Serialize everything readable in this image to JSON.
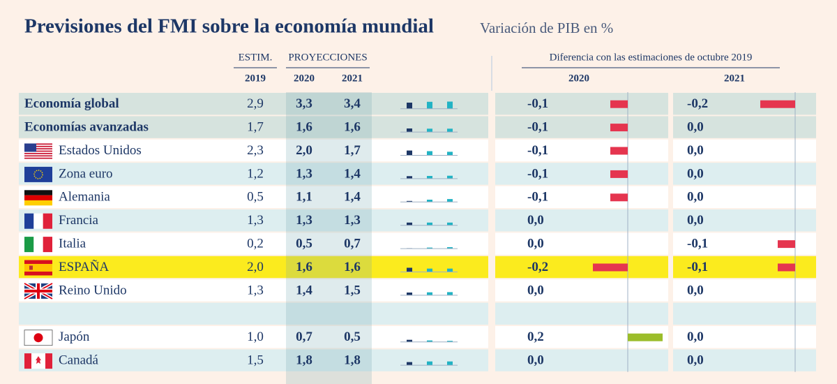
{
  "header": {
    "title": "Previsiones del FMI sobre la economía mundial",
    "subtitle": "Variación de PIB en %"
  },
  "columns": {
    "estim": "ESTIM.",
    "proj": "PROYECCIONES",
    "years": [
      "2019",
      "2020",
      "2021"
    ],
    "diff_title": "Diferencia con las estimaciones de octubre 2019",
    "diff_years": [
      "2020",
      "2021"
    ]
  },
  "table": {
    "rows": [
      {
        "name": "Economía global",
        "gdp": [
          {
            "value": 2.9,
            "label": "2,9"
          },
          {
            "value": 3.3,
            "label": "3,3"
          },
          {
            "value": 3.4,
            "label": "3,4"
          }
        ],
        "diff": [
          {
            "value": -0.1,
            "label": "-0,1"
          },
          {
            "value": -0.2,
            "label": "-0,2"
          }
        ]
      },
      {
        "name": "Economías avanzadas",
        "gdp": [
          {
            "value": 1.7,
            "label": "1,7"
          },
          {
            "value": 1.6,
            "label": "1,6"
          },
          {
            "value": 1.6,
            "label": "1,6"
          }
        ],
        "diff": [
          {
            "value": -0.1,
            "label": "-0,1"
          },
          {
            "value": 0,
            "label": "0,0"
          }
        ]
      },
      {
        "name": "Estados Unidos",
        "gdp": [
          {
            "value": 2.3,
            "label": "2,3"
          },
          {
            "value": 2.0,
            "label": "2,0"
          },
          {
            "value": 1.7,
            "label": "1,7"
          }
        ],
        "diff": [
          {
            "value": -0.1,
            "label": "-0,1"
          },
          {
            "value": 0,
            "label": "0,0"
          }
        ]
      },
      {
        "name": "Zona euro",
        "gdp": [
          {
            "value": 1.2,
            "label": "1,2"
          },
          {
            "value": 1.3,
            "label": "1,3"
          },
          {
            "value": 1.4,
            "label": "1,4"
          }
        ],
        "diff": [
          {
            "value": -0.1,
            "label": "-0,1"
          },
          {
            "value": 0,
            "label": "0,0"
          }
        ]
      },
      {
        "name": "Alemania",
        "gdp": [
          {
            "value": 0.5,
            "label": "0,5"
          },
          {
            "value": 1.1,
            "label": "1,1"
          },
          {
            "value": 1.4,
            "label": "1,4"
          }
        ],
        "diff": [
          {
            "value": -0.1,
            "label": "-0,1"
          },
          {
            "value": 0,
            "label": "0,0"
          }
        ]
      },
      {
        "name": "Francia",
        "gdp": [
          {
            "value": 1.3,
            "label": "1,3"
          },
          {
            "value": 1.3,
            "label": "1,3"
          },
          {
            "value": 1.3,
            "label": "1,3"
          }
        ],
        "diff": [
          {
            "value": 0,
            "label": "0,0"
          },
          {
            "value": 0,
            "label": "0,0"
          }
        ]
      },
      {
        "name": "Italia",
        "gdp": [
          {
            "value": 0.2,
            "label": "0,2"
          },
          {
            "value": 0.5,
            "label": "0,5"
          },
          {
            "value": 0.7,
            "label": "0,7"
          }
        ],
        "diff": [
          {
            "value": 0,
            "label": "0,0"
          },
          {
            "value": -0.1,
            "label": "-0,1"
          }
        ]
      },
      {
        "name": "ESPAÑA",
        "gdp": [
          {
            "value": 2.0,
            "label": "2,0"
          },
          {
            "value": 1.6,
            "label": "1,6"
          },
          {
            "value": 1.6,
            "label": "1,6"
          }
        ],
        "diff": [
          {
            "value": -0.2,
            "label": "-0,2"
          },
          {
            "value": -0.1,
            "label": "-0,1"
          }
        ]
      },
      {
        "name": "Reino Unido",
        "gdp": [
          {
            "value": 1.3,
            "label": "1,3"
          },
          {
            "value": 1.4,
            "label": "1,4"
          },
          {
            "value": 1.5,
            "label": "1,5"
          }
        ],
        "diff": [
          {
            "value": 0,
            "label": "0,0"
          },
          {
            "value": 0,
            "label": "0,0"
          }
        ]
      },
      {
        "name": "Japón",
        "gdp": [
          {
            "value": 1.0,
            "label": "1,0"
          },
          {
            "value": 0.7,
            "label": "0,7"
          },
          {
            "value": 0.5,
            "label": "0,5"
          }
        ],
        "diff": [
          {
            "value": 0.2,
            "label": "0,2"
          },
          {
            "value": 0,
            "label": "0,0"
          }
        ]
      },
      {
        "name": "Canadá",
        "gdp": [
          {
            "value": 1.5,
            "label": "1,5"
          },
          {
            "value": 1.8,
            "label": "1,8"
          },
          {
            "value": 1.8,
            "label": "1,8"
          }
        ],
        "diff": [
          {
            "value": 0,
            "label": "0,0"
          },
          {
            "value": 0,
            "label": "0,0"
          }
        ]
      }
    ]
  }
}
